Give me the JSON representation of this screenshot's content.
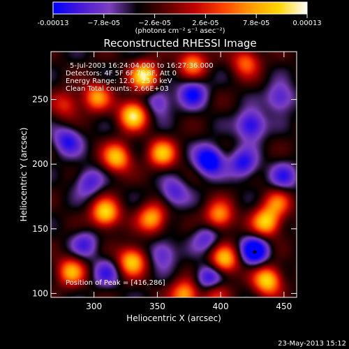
{
  "colorbar": {
    "tick_labels": [
      "-0.00013",
      "−7.8e-05",
      "−2.6e-05",
      "2.6e-05",
      "7.8e-05",
      "0.00013"
    ],
    "units_label": "(photons cm⁻² s⁻¹ asec⁻²)",
    "range": [
      -0.00013,
      0.00013
    ],
    "colors": [
      "#0000ff",
      "#4a1bd6",
      "#7c3fbf",
      "#000000",
      "#5a0000",
      "#c00000",
      "#ff4000",
      "#ff9a00",
      "#ffd700",
      "#ffffff"
    ]
  },
  "chart_data": {
    "type": "heatmap",
    "title": "Reconstructed RHESSI Image",
    "xlabel": "Heliocentric X (arcsec)",
    "ylabel": "Heliocentric Y (arcsec)",
    "xlim": [
      266,
      460
    ],
    "ylim": [
      97,
      287
    ],
    "x_ticks": [
      300,
      350,
      400,
      450
    ],
    "y_ticks": [
      100,
      150,
      200,
      250
    ],
    "info_lines": [
      "5-Jul-2003 16:24:04.000 to 16:27:36.000",
      "Detectors: 4F 5F 6F 7F 8F, Att 0",
      "Energy Range: 12.0 - 25.0 keV",
      "Clean    Total counts: 2.66E+03"
    ],
    "peak_label": "Position of Peak = [416,286]",
    "peak": [
      416,
      286
    ],
    "grid": false,
    "legend": "none",
    "blobs_hot": [
      [
        340,
        268,
        1.0
      ],
      [
        331,
        238,
        1.0
      ],
      [
        302,
        252,
        0.7
      ],
      [
        378,
        278,
        0.7
      ],
      [
        278,
        246,
        0.45
      ],
      [
        354,
        208,
        0.8
      ],
      [
        318,
        205,
        0.85
      ],
      [
        309,
        162,
        0.95
      ],
      [
        346,
        158,
        0.8
      ],
      [
        282,
        117,
        0.75
      ],
      [
        330,
        125,
        0.9
      ],
      [
        372,
        99,
        0.8
      ],
      [
        399,
        160,
        0.75
      ],
      [
        403,
        126,
        0.85
      ],
      [
        436,
        155,
        0.9
      ],
      [
        437,
        110,
        0.95
      ],
      [
        395,
        101,
        0.5
      ],
      [
        420,
        279,
        0.6
      ],
      [
        445,
        170,
        0.55
      ]
    ],
    "blobs_cold": [
      [
        378,
        255,
        0.7
      ],
      [
        391,
        203,
        1.0
      ],
      [
        424,
        230,
        0.8
      ],
      [
        351,
        248,
        0.55
      ],
      [
        418,
        200,
        0.7
      ],
      [
        447,
        251,
        0.6
      ],
      [
        363,
        178,
        0.55
      ],
      [
        296,
        186,
        0.55
      ],
      [
        354,
        131,
        0.55
      ],
      [
        389,
        143,
        0.5
      ],
      [
        427,
        133,
        1.0
      ],
      [
        450,
        190,
        0.55
      ],
      [
        391,
        111,
        0.85
      ],
      [
        279,
        218,
        0.65
      ],
      [
        293,
        138,
        0.5
      ],
      [
        310,
        116,
        0.5
      ]
    ]
  },
  "footer": {
    "date": "23-May-2013 15:12"
  }
}
